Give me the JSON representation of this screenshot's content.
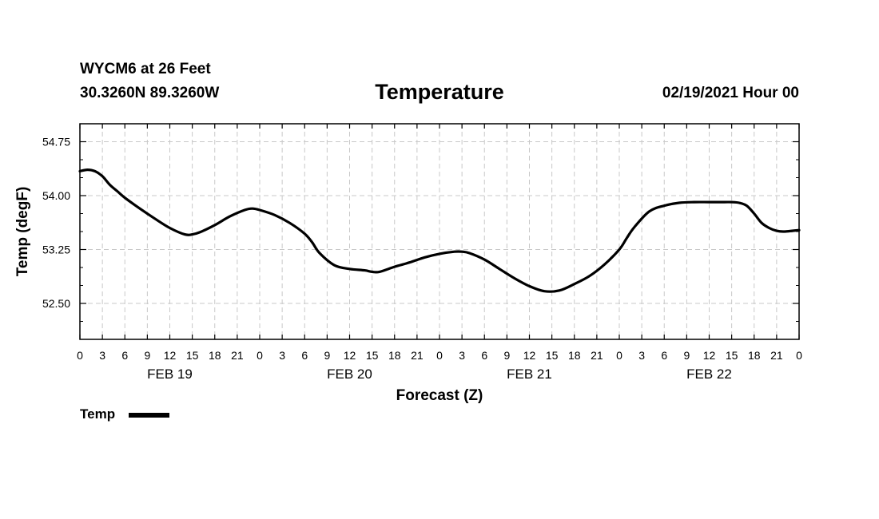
{
  "header": {
    "station": "WYCM6 at 26 Feet",
    "coords": "30.3260N 89.3260W",
    "title": "Temperature",
    "datetime": "02/19/2021 Hour 00"
  },
  "legend": {
    "label": "Temp",
    "color": "#000000"
  },
  "chart_data": {
    "type": "line",
    "title": "Temperature",
    "xlabel": "Forecast (Z)",
    "ylabel": "Temp (degF)",
    "x_unit": "hours since 02/19/2021 00Z",
    "xlim": [
      0,
      96
    ],
    "ylim": [
      52.0,
      55.0
    ],
    "yticks": [
      52.5,
      53.25,
      54.0,
      54.75
    ],
    "ytick_labels": [
      "52.50",
      "53.25",
      "54.00",
      "54.75"
    ],
    "xticks": [
      0,
      3,
      6,
      9,
      12,
      15,
      18,
      21,
      24,
      27,
      30,
      33,
      36,
      39,
      42,
      45,
      48,
      51,
      54,
      57,
      60,
      63,
      66,
      69,
      72,
      75,
      78,
      81,
      84,
      87,
      90,
      93,
      96
    ],
    "xtick_labels": [
      "0",
      "3",
      "6",
      "9",
      "12",
      "15",
      "18",
      "21",
      "0",
      "3",
      "6",
      "9",
      "12",
      "15",
      "18",
      "21",
      "0",
      "3",
      "6",
      "9",
      "12",
      "15",
      "18",
      "21",
      "0",
      "3",
      "6",
      "9",
      "12",
      "15",
      "18",
      "21",
      "0"
    ],
    "day_labels": [
      {
        "label": "FEB 19",
        "x": 12
      },
      {
        "label": "FEB 20",
        "x": 36
      },
      {
        "label": "FEB 21",
        "x": 60
      },
      {
        "label": "FEB 22",
        "x": 84
      }
    ],
    "grid": true,
    "series": [
      {
        "name": "Temp",
        "color": "#000000",
        "x": [
          0,
          1,
          2,
          3,
          4,
          5,
          6,
          8,
          10,
          12,
          14,
          15,
          16,
          18,
          20,
          22,
          23,
          24,
          26,
          28,
          30,
          31,
          32,
          34,
          36,
          38,
          39,
          40,
          42,
          44,
          46,
          48,
          50,
          51,
          52,
          54,
          56,
          58,
          60,
          62,
          64,
          66,
          68,
          70,
          72,
          73,
          74,
          76,
          78,
          80,
          82,
          84,
          86,
          87,
          88,
          89,
          90,
          91,
          92,
          93,
          94,
          96
        ],
        "y": [
          54.34,
          54.36,
          54.34,
          54.27,
          54.15,
          54.06,
          53.97,
          53.82,
          53.68,
          53.55,
          53.46,
          53.46,
          53.49,
          53.59,
          53.71,
          53.8,
          53.82,
          53.8,
          53.73,
          53.62,
          53.47,
          53.35,
          53.2,
          53.03,
          52.98,
          52.96,
          52.94,
          52.94,
          53.01,
          53.07,
          53.14,
          53.19,
          53.22,
          53.22,
          53.2,
          53.11,
          52.98,
          52.85,
          52.74,
          52.67,
          52.68,
          52.77,
          52.88,
          53.04,
          53.25,
          53.41,
          53.56,
          53.78,
          53.86,
          53.9,
          53.91,
          53.91,
          53.91,
          53.91,
          53.9,
          53.86,
          53.75,
          53.62,
          53.55,
          53.51,
          53.5,
          53.52
        ]
      }
    ]
  }
}
